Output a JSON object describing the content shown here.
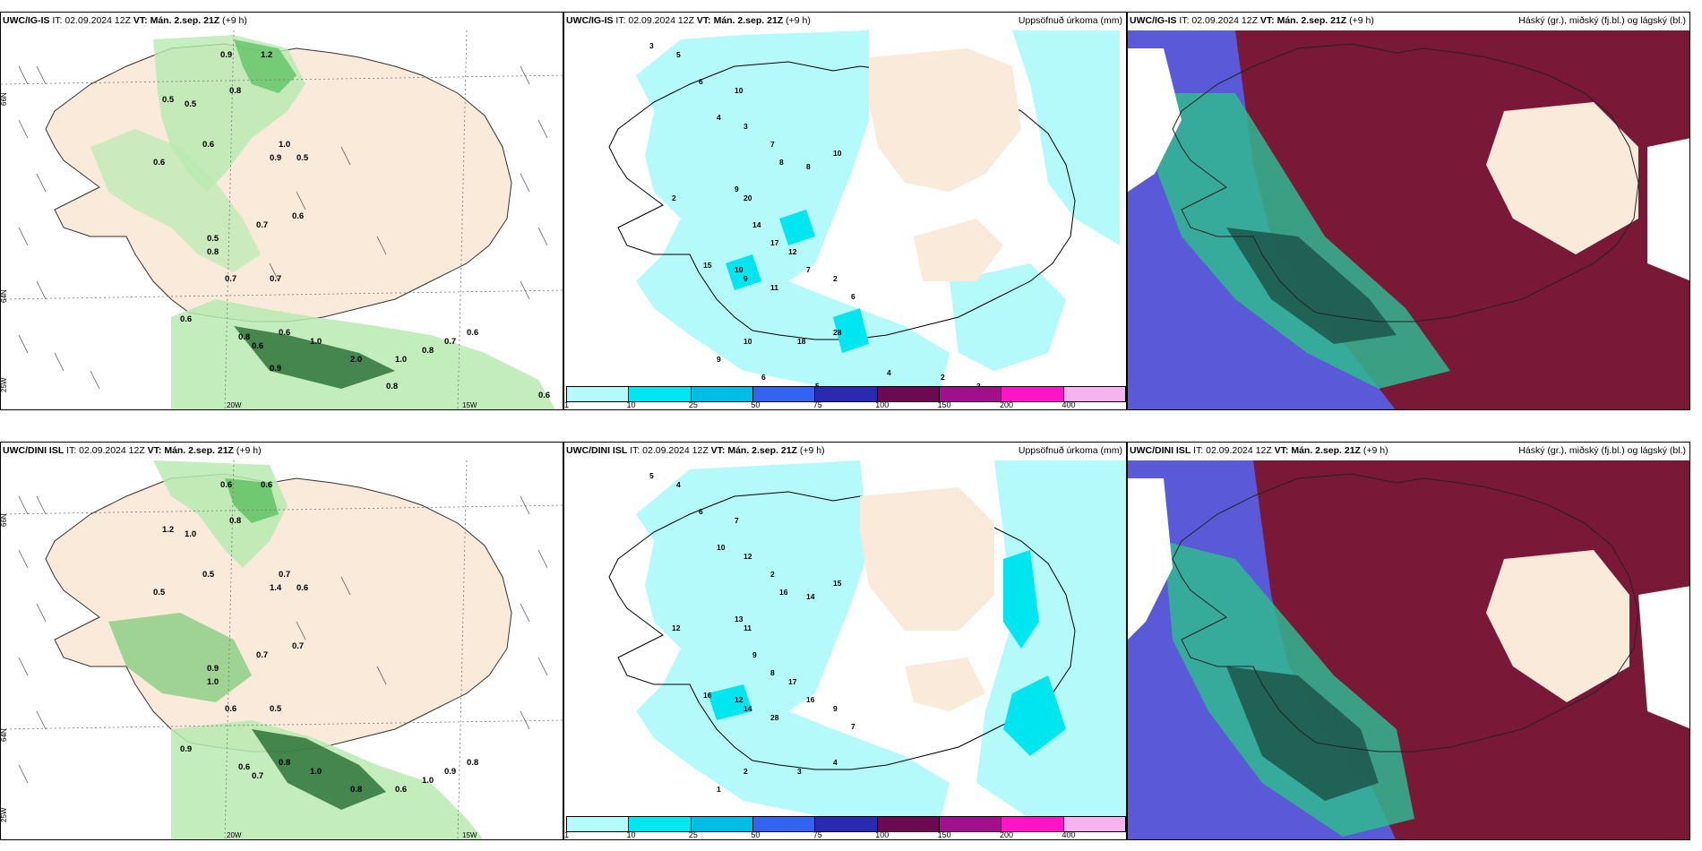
{
  "rows": [
    {
      "model": "UWC/IG-IS",
      "it_label": "IT: 02.09.2024 12Z",
      "vt_label": "VT: Mán. 2.sep. 21Z",
      "lead": "(+9 h)",
      "precip_title": "Uppsöfnuð úrkoma (mm)",
      "cloud_title": "Háský (gr.), miðský (fj.bl.) og lágský (bl.)",
      "wind_values": [
        "0.9",
        "1.2",
        "0.8",
        "0.5",
        "0.5",
        "0.6",
        "1.0",
        "0.9",
        "0.5",
        "0.6",
        "0.6",
        "0.7",
        "0.5",
        "0.8",
        "0.7",
        "0.7",
        "0.6",
        "0.8",
        "0.6",
        "0.6",
        "1.0",
        "2.0",
        "1.0",
        "0.8",
        "0.7",
        "0.6",
        "0.9",
        "0.8",
        "0.6"
      ],
      "precip_values": [
        "3",
        "5",
        "6",
        "10",
        "4",
        "3",
        "7",
        "8",
        "8",
        "10",
        "9",
        "2",
        "20",
        "14",
        "17",
        "12",
        "15",
        "10",
        "9",
        "11",
        "7",
        "2",
        "6",
        "28",
        "18",
        "10",
        "9",
        "6",
        "5",
        "4",
        "2",
        "3"
      ]
    },
    {
      "model": "UWC/DINI ISL",
      "it_label": "IT: 02.09.2024 12Z",
      "vt_label": "VT: Mán. 2.sep. 21Z",
      "lead": "(+9 h)",
      "precip_title": "Uppsöfnuð úrkoma (mm)",
      "cloud_title": "Háský (gr.), miðský (fj.bl.) og lágský (bl.)",
      "wind_values": [
        "0.6",
        "0.6",
        "0.8",
        "1.2",
        "1.0",
        "0.5",
        "0.7",
        "1.4",
        "0.6",
        "0.5",
        "0.7",
        "0.7",
        "0.9",
        "1.0",
        "0.6",
        "0.5",
        "0.9",
        "0.6",
        "0.7",
        "0.8",
        "1.0",
        "0.8",
        "0.6",
        "1.0",
        "0.9",
        "0.8"
      ],
      "precip_values": [
        "5",
        "4",
        "6",
        "7",
        "10",
        "12",
        "2",
        "16",
        "14",
        "15",
        "13",
        "12",
        "11",
        "9",
        "8",
        "17",
        "16",
        "12",
        "14",
        "28",
        "16",
        "9",
        "7",
        "4",
        "3",
        "2",
        "1"
      ]
    }
  ],
  "axis_labels": {
    "lat_66": "66N",
    "lat_64": "64N",
    "lat_64_b": "64N",
    "lon_25": "25W",
    "lon_20": "20W",
    "lon_15": "15W"
  },
  "colorbar": {
    "labels": [
      "1",
      "10",
      "25",
      "50",
      "75",
      "100",
      "150",
      "200",
      "400"
    ],
    "colors": [
      "#b4fafa",
      "#00e6f0",
      "#00bde6",
      "#3264f0",
      "#2a2ab0",
      "#6b0a50",
      "#a0108c",
      "#ff14c8",
      "#f5b4f0"
    ]
  },
  "colors": {
    "land": "#f9ead9",
    "light_green": "#b8eab0",
    "mid_green": "#62c365",
    "dark_green": "#0e5a1e",
    "precip_light": "#b4fafa",
    "precip_mid": "#00e6f0",
    "cloud_high": "#7a1838",
    "cloud_mid": "#5a5ad8",
    "cloud_low": "#30b890"
  }
}
